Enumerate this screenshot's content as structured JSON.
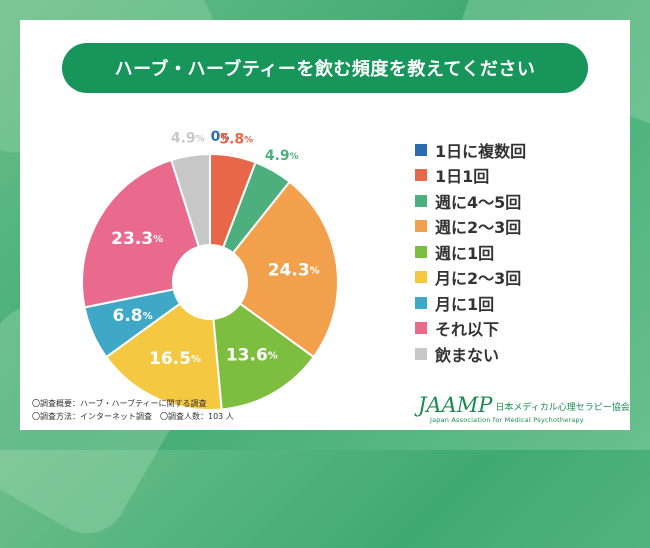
{
  "title": "ハーブ・ハーブティーを飲む頻度を教えてください",
  "chart_data": {
    "type": "pie",
    "title": "ハーブ・ハーブティーを飲む頻度を教えてください",
    "unit": "%",
    "categories": [
      "1日に複数回",
      "1日1回",
      "週に4～5回",
      "週に2～3回",
      "週に1回",
      "月に2～3回",
      "月に1回",
      "それ以下",
      "飲まない"
    ],
    "values": [
      0,
      5.8,
      4.9,
      24.3,
      13.6,
      16.5,
      6.8,
      23.3,
      4.9
    ],
    "labels": [
      "0",
      "5.8",
      "4.9",
      "24.3",
      "13.6",
      "16.5",
      "6.8",
      "23.3",
      "4.9"
    ],
    "colors": [
      "#2b6cb0",
      "#e8664a",
      "#4caf7d",
      "#f2a04c",
      "#7dbd3f",
      "#f5c842",
      "#3fa8c6",
      "#e96a8d",
      "#c7c7c7"
    ],
    "legend_position": "right"
  },
  "footnote": {
    "line1": "〇調査概要：ハーブ・ハーブティーに関する調査",
    "line2": "〇調査方法：インターネット調査　〇調査人数：103 人"
  },
  "logo": {
    "mark": "JAAMP",
    "jp": "日本メディカル心理セラピー協会",
    "en": "Japan Association for Medical Psychotherapy"
  }
}
